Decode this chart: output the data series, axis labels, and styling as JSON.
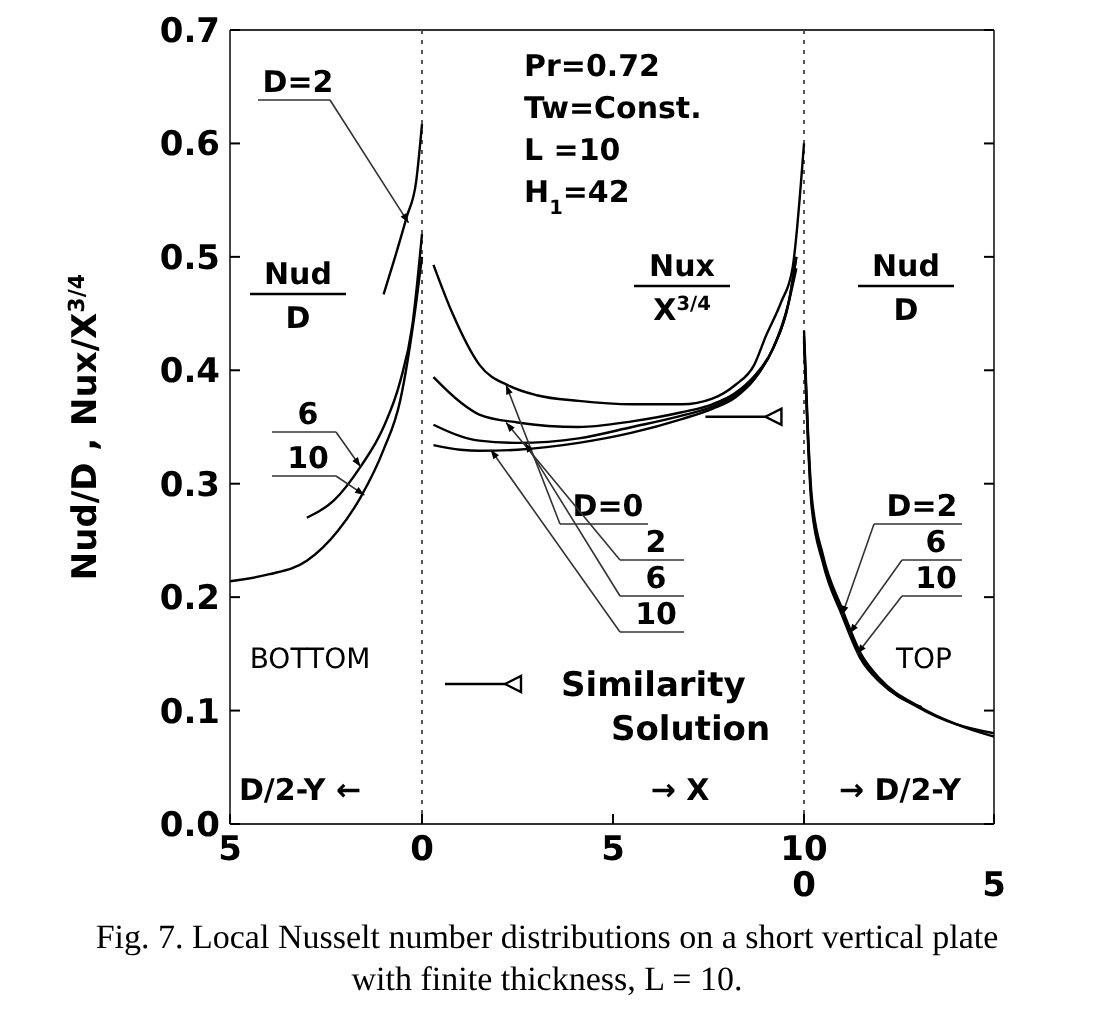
{
  "chart_data": [
    {
      "type": "line",
      "ylabel": "Nud/D , Nux/X$^{3/4}$",
      "xlim": [
        5,
        0
      ],
      "ylim": [
        0,
        0.7
      ],
      "xticks": [
        5,
        0
      ],
      "yticks": [
        {
          "value": 0,
          "label": "0.0"
        },
        0.1,
        0.2,
        0.3,
        0.4,
        0.5,
        0.6,
        0.7
      ],
      "grid": false,
      "marker": "none",
      "line_style": "solid",
      "series": [
        {
          "color": "#000000",
          "x": [
            1,
            0.7,
            0.4,
            0.15,
            0
          ],
          "values": [
            0.467,
            0.5,
            0.535,
            0.567,
            0.617
          ]
        },
        {
          "color": "#000000",
          "x": [
            3,
            2.3,
            1.6,
            1,
            0.57,
            0.25,
            0
          ],
          "values": [
            0.27,
            0.285,
            0.315,
            0.35,
            0.39,
            0.44,
            0.52
          ]
        },
        {
          "color": "#000000",
          "x": [
            5,
            4,
            3,
            2.2,
            1.6,
            1,
            0.57,
            0.15,
            0
          ],
          "values": [
            0.214,
            0.22,
            0.232,
            0.258,
            0.288,
            0.33,
            0.373,
            0.46,
            0.5
          ]
        }
      ],
      "annotations": [
        "Nud",
        "D",
        "BOTTOM",
        "D/2-Y ←",
        {
          "text": "D=2",
          "x": 0.35,
          "y": 0.53
        },
        {
          "text": "6",
          "x": 1.6,
          "y": 0.315
        },
        {
          "text": "10",
          "x": 1.5,
          "y": 0.29
        }
      ]
    },
    {
      "type": "line",
      "xlim": [
        0,
        10
      ],
      "ylim": [
        0,
        0.7
      ],
      "xticks": [
        {
          "value": 0,
          "label": null
        },
        5,
        10
      ],
      "yticks": [
        0,
        0.1,
        0.2,
        0.3,
        0.4,
        0.5,
        0.6,
        0.7
      ],
      "tick_labels": "x",
      "grid": false,
      "legend": "bottom",
      "marker": "none",
      "line_style": "solid",
      "series": [
        {
          "color": "#000000",
          "x": [
            0.3,
            0.8,
            1.5,
            2.3,
            3,
            4.1,
            5.5,
            6.8,
            7.6,
            8.2,
            8.7,
            9,
            9.4,
            9.7,
            10
          ],
          "values": [
            0.493,
            0.45,
            0.405,
            0.386,
            0.378,
            0.373,
            0.37,
            0.37,
            0.375,
            0.387,
            0.405,
            0.43,
            0.46,
            0.49,
            0.6
          ]
        },
        {
          "color": "#000000",
          "x": [
            0.3,
            1,
            1.5,
            2.5,
            4.1,
            5.5,
            6.8,
            7.6,
            8.2,
            8.7,
            9.2,
            9.6,
            9.8
          ],
          "values": [
            0.394,
            0.372,
            0.361,
            0.354,
            0.35,
            0.355,
            0.363,
            0.37,
            0.38,
            0.395,
            0.42,
            0.46,
            0.49
          ]
        },
        {
          "color": "#000000",
          "x": [
            0.3,
            1,
            1.5,
            2.5,
            4.1,
            5.5,
            6.8,
            7.6,
            8.2,
            8.7,
            9.2,
            9.6,
            9.8
          ],
          "values": [
            0.352,
            0.342,
            0.338,
            0.336,
            0.34,
            0.35,
            0.36,
            0.368,
            0.378,
            0.393,
            0.42,
            0.46,
            0.5
          ]
        },
        {
          "color": "#000000",
          "x": [
            0.3,
            1,
            1.5,
            2.5,
            4.1,
            5.5,
            6.8,
            7.6,
            8.2,
            8.7,
            9.2,
            9.6,
            9.8
          ],
          "values": [
            0.334,
            0.33,
            0.329,
            0.33,
            0.336,
            0.345,
            0.357,
            0.366,
            0.376,
            0.392,
            0.42,
            0.46,
            0.5
          ]
        },
        {
          "name": "Similarity Solution",
          "type": "scatter",
          "marker": "triangle",
          "color": "#000000",
          "x": [
            9.2
          ],
          "values": [
            0.359
          ]
        }
      ],
      "annotations": [
        "Pr=0.72\nTw=Const.\nL =10\nH$_{1}$=42",
        "Nux",
        "X$^{3/4}$",
        "→ X",
        {
          "text": "D=0",
          "x": 2.2,
          "y": 0.387
        },
        {
          "text": "2",
          "x": 2.2,
          "y": 0.354
        },
        {
          "text": "6",
          "x": 2.7,
          "y": 0.336
        },
        {
          "text": "10",
          "x": 1.8,
          "y": 0.33
        },
        "Fig. 7. Local Nusselt number distributions on a short vertical plate with finite thickness, L = 10."
      ]
    },
    {
      "type": "line",
      "xlim": [
        0,
        5
      ],
      "ylim": [
        0,
        0.7
      ],
      "xticks": [
        0,
        5
      ],
      "yticks": [
        0,
        0.1,
        0.2,
        0.3,
        0.4,
        0.5,
        0.6,
        0.7
      ],
      "tick_labels": "x",
      "grid": false,
      "marker": "none",
      "line_style": "solid",
      "series": [
        {
          "color": "#000000",
          "x": [
            0,
            0.1,
            0.2,
            0.5,
            1,
            1.5,
            2,
            2.5,
            3.1
          ],
          "values": [
            0.426,
            0.34,
            0.28,
            0.23,
            0.184,
            0.145,
            0.125,
            0.112,
            0.103
          ]
        },
        {
          "color": "#000000",
          "x": [
            0,
            0.1,
            0.2,
            0.5,
            1,
            1.5,
            2,
            3,
            4,
            5
          ],
          "values": [
            0.43,
            0.345,
            0.285,
            0.233,
            0.186,
            0.147,
            0.126,
            0.103,
            0.088,
            0.08
          ]
        },
        {
          "color": "#000000",
          "x": [
            0,
            0.1,
            0.2,
            0.5,
            1,
            1.5,
            2,
            3,
            4,
            5
          ],
          "values": [
            0.435,
            0.35,
            0.29,
            0.237,
            0.19,
            0.15,
            0.128,
            0.104,
            0.088,
            0.077
          ]
        }
      ],
      "annotations": [
        "Nud",
        "D",
        "TOP",
        "→ D/2-Y",
        {
          "text": "D=2",
          "x": 1,
          "y": 0.184
        },
        {
          "text": "6",
          "x": 1.2,
          "y": 0.168
        },
        {
          "text": "10",
          "x": 1.4,
          "y": 0.15
        }
      ]
    }
  ]
}
